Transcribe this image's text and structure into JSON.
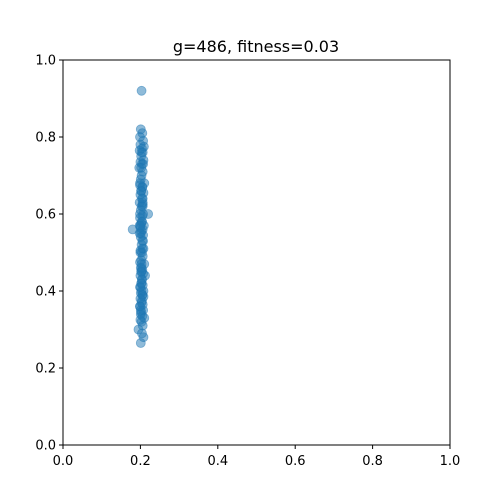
{
  "chart_data": {
    "type": "scatter",
    "title": "g=486, fitness=0.03",
    "xlabel": "",
    "ylabel": "",
    "xlim": [
      0.0,
      1.0
    ],
    "ylim": [
      0.0,
      1.0
    ],
    "xticks": [
      "0.0",
      "0.2",
      "0.4",
      "0.6",
      "0.8",
      "1.0"
    ],
    "yticks": [
      "0.0",
      "0.2",
      "0.4",
      "0.6",
      "0.8",
      "1.0"
    ],
    "grid": false,
    "marker_color": "#1f77b4",
    "marker_alpha": 0.5,
    "series": [
      {
        "x": [
          0.203,
          0.201,
          0.205,
          0.199,
          0.207,
          0.2,
          0.209,
          0.204,
          0.198,
          0.206,
          0.202,
          0.208,
          0.2,
          0.204,
          0.197,
          0.206,
          0.203,
          0.201,
          0.21,
          0.199,
          0.205,
          0.202,
          0.208,
          0.2,
          0.204,
          0.198,
          0.206,
          0.203,
          0.201,
          0.207,
          0.205,
          0.199,
          0.204,
          0.202,
          0.209,
          0.2,
          0.206,
          0.203,
          0.198,
          0.207,
          0.201,
          0.205,
          0.203,
          0.208,
          0.2,
          0.204,
          0.206,
          0.202,
          0.199,
          0.21,
          0.201,
          0.205,
          0.203,
          0.207,
          0.2,
          0.204,
          0.18,
          0.202,
          0.206,
          0.199,
          0.203,
          0.201,
          0.205,
          0.208,
          0.2,
          0.204,
          0.203,
          0.206,
          0.199,
          0.207,
          0.202,
          0.201,
          0.205,
          0.21,
          0.2,
          0.203,
          0.206,
          0.195,
          0.204,
          0.208,
          0.201,
          0.199,
          0.207,
          0.203,
          0.205,
          0.212,
          0.2,
          0.204,
          0.198,
          0.206,
          0.202,
          0.201,
          0.205,
          0.203,
          0.199,
          0.207,
          0.2,
          0.204,
          0.206,
          0.202,
          0.203,
          0.201,
          0.199,
          0.208,
          0.205,
          0.203,
          0.22,
          0.2,
          0.206,
          0.202
        ],
        "y": [
          0.92,
          0.82,
          0.81,
          0.8,
          0.79,
          0.78,
          0.775,
          0.77,
          0.765,
          0.76,
          0.75,
          0.74,
          0.735,
          0.73,
          0.72,
          0.71,
          0.7,
          0.69,
          0.68,
          0.675,
          0.67,
          0.66,
          0.655,
          0.65,
          0.64,
          0.63,
          0.625,
          0.62,
          0.61,
          0.6,
          0.595,
          0.59,
          0.58,
          0.575,
          0.57,
          0.565,
          0.56,
          0.555,
          0.55,
          0.545,
          0.54,
          0.53,
          0.52,
          0.51,
          0.505,
          0.5,
          0.49,
          0.48,
          0.475,
          0.47,
          0.46,
          0.455,
          0.45,
          0.445,
          0.44,
          0.43,
          0.56,
          0.42,
          0.415,
          0.41,
          0.4,
          0.395,
          0.39,
          0.385,
          0.38,
          0.375,
          0.37,
          0.365,
          0.36,
          0.35,
          0.345,
          0.34,
          0.335,
          0.33,
          0.325,
          0.32,
          0.31,
          0.3,
          0.29,
          0.28,
          0.265,
          0.6,
          0.73,
          0.76,
          0.67,
          0.44,
          0.5,
          0.43,
          0.57,
          0.62,
          0.66,
          0.35,
          0.39,
          0.46,
          0.68,
          0.53,
          0.41,
          0.58,
          0.64,
          0.72,
          0.47,
          0.55,
          0.36,
          0.4,
          0.51,
          0.42,
          0.6,
          0.57,
          0.63,
          0.45
        ]
      }
    ]
  }
}
